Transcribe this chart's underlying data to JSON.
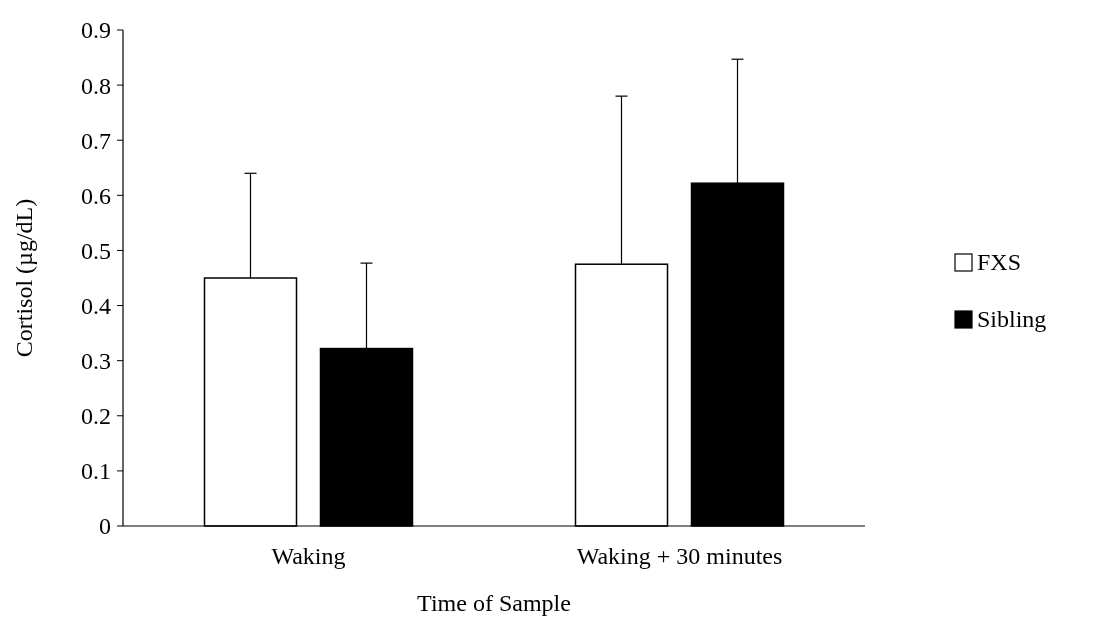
{
  "chart_data": {
    "type": "bar",
    "xlabel": "Time of Sample",
    "ylabel": "Cortisol (µg/dL)",
    "categories": [
      "Waking",
      "Waking + 30 minutes"
    ],
    "series": [
      {
        "name": "FXS",
        "color": "#ffffff",
        "values": [
          0.45,
          0.475
        ],
        "errors": [
          0.19,
          0.305
        ]
      },
      {
        "name": "Sibling",
        "color": "#000000",
        "values": [
          0.322,
          0.622
        ],
        "errors": [
          0.155,
          0.225
        ]
      }
    ],
    "ylim": [
      0,
      0.9
    ],
    "yticks": [
      0,
      0.1,
      0.2,
      0.3,
      0.4,
      0.5,
      0.6,
      0.7,
      0.8,
      0.9
    ],
    "grid": false,
    "legend": "right"
  }
}
